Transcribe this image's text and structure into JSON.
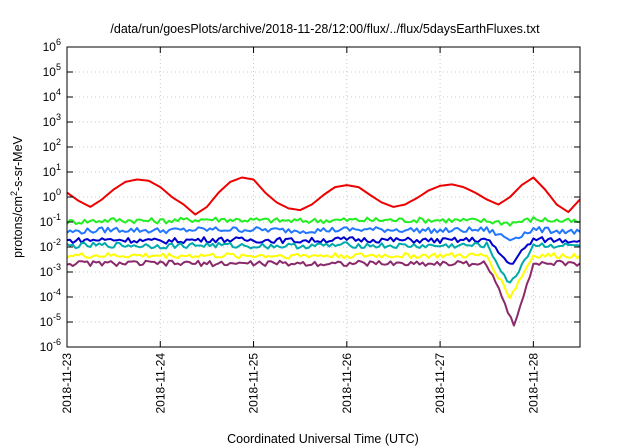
{
  "chart_data": {
    "type": "line",
    "title": "/data/run/goesPlots/archive/2018-11-28/12:00/flux/../flux/5daysEarthFluxes.txt",
    "xlabel": "Coordinated Universal Time (UTC)",
    "ylabel": {
      "base": "protons/cm",
      "sup": "2",
      "rest": "-s-sr-MeV"
    },
    "x_range": [
      "2018-11-23 00:00",
      "2018-11-28 12:00"
    ],
    "x_ticks": [
      "2018-11-23",
      "2018-11-24",
      "2018-11-25",
      "2018-11-26",
      "2018-11-27",
      "2018-11-28"
    ],
    "y_scale": "log",
    "ylim": [
      1e-06,
      1000000.0
    ],
    "y_ticks": [
      {
        "base": "10",
        "exp": "-6"
      },
      {
        "base": "10",
        "exp": "-5"
      },
      {
        "base": "10",
        "exp": "-4"
      },
      {
        "base": "10",
        "exp": "-3"
      },
      {
        "base": "10",
        "exp": "-2"
      },
      {
        "base": "10",
        "exp": "-1"
      },
      {
        "base": "10",
        "exp": "0"
      },
      {
        "base": "10",
        "exp": "1"
      },
      {
        "base": "10",
        "exp": "2"
      },
      {
        "base": "10",
        "exp": "3"
      },
      {
        "base": "10",
        "exp": "4"
      },
      {
        "base": "10",
        "exp": "5"
      },
      {
        "base": "10",
        "exp": "6"
      }
    ],
    "grid": true,
    "series": [
      {
        "color": "#ee0000",
        "x": [
          "2018-11-23 00:00",
          "2018-11-23 03:00",
          "2018-11-23 06:00",
          "2018-11-23 09:00",
          "2018-11-23 12:00",
          "2018-11-23 15:00",
          "2018-11-23 18:00",
          "2018-11-23 21:00",
          "2018-11-24 00:00",
          "2018-11-24 03:00",
          "2018-11-24 06:00",
          "2018-11-24 09:00",
          "2018-11-24 12:00",
          "2018-11-24 15:00",
          "2018-11-24 18:00",
          "2018-11-24 21:00",
          "2018-11-25 00:00",
          "2018-11-25 03:00",
          "2018-11-25 06:00",
          "2018-11-25 09:00",
          "2018-11-25 12:00",
          "2018-11-25 15:00",
          "2018-11-25 18:00",
          "2018-11-25 21:00",
          "2018-11-26 00:00",
          "2018-11-26 03:00",
          "2018-11-26 06:00",
          "2018-11-26 09:00",
          "2018-11-26 12:00",
          "2018-11-26 15:00",
          "2018-11-26 18:00",
          "2018-11-26 21:00",
          "2018-11-27 00:00",
          "2018-11-27 03:00",
          "2018-11-27 06:00",
          "2018-11-27 09:00",
          "2018-11-27 12:00",
          "2018-11-27 15:00",
          "2018-11-27 18:00",
          "2018-11-27 21:00",
          "2018-11-28 00:00",
          "2018-11-28 03:00",
          "2018-11-28 06:00",
          "2018-11-28 09:00",
          "2018-11-28 12:00"
        ],
        "y": [
          1.5,
          0.7,
          0.4,
          0.8,
          2.0,
          4.0,
          5.0,
          4.5,
          2.5,
          1.0,
          0.5,
          0.2,
          0.4,
          1.5,
          4.0,
          6.0,
          5.0,
          1.5,
          0.6,
          0.35,
          0.3,
          0.5,
          1.2,
          2.5,
          3.0,
          2.5,
          1.2,
          0.6,
          0.4,
          0.5,
          0.9,
          1.8,
          2.8,
          3.2,
          2.5,
          1.5,
          0.8,
          0.5,
          1.0,
          3.0,
          6.0,
          2.0,
          0.5,
          0.25,
          0.8
        ]
      },
      {
        "color": "#22ee22",
        "x": [
          "2018-11-23 00:00",
          "2018-11-23 12:00",
          "2018-11-24 00:00",
          "2018-11-24 12:00",
          "2018-11-25 00:00",
          "2018-11-25 12:00",
          "2018-11-26 00:00",
          "2018-11-26 12:00",
          "2018-11-27 00:00",
          "2018-11-27 12:00",
          "2018-11-27 18:00",
          "2018-11-28 00:00",
          "2018-11-28 12:00"
        ],
        "y": [
          0.1,
          0.12,
          0.11,
          0.13,
          0.12,
          0.11,
          0.12,
          0.12,
          0.12,
          0.11,
          0.09,
          0.13,
          0.1
        ]
      },
      {
        "color": "#2277ff",
        "x": [
          "2018-11-23 00:00",
          "2018-11-23 12:00",
          "2018-11-24 00:00",
          "2018-11-24 12:00",
          "2018-11-25 00:00",
          "2018-11-25 12:00",
          "2018-11-26 00:00",
          "2018-11-26 12:00",
          "2018-11-27 00:00",
          "2018-11-27 12:00",
          "2018-11-27 18:00",
          "2018-11-28 00:00",
          "2018-11-28 12:00"
        ],
        "y": [
          0.04,
          0.05,
          0.045,
          0.05,
          0.05,
          0.045,
          0.05,
          0.05,
          0.045,
          0.05,
          0.02,
          0.05,
          0.04
        ]
      },
      {
        "color": "#0000cc",
        "x": [
          "2018-11-23 00:00",
          "2018-11-23 12:00",
          "2018-11-24 00:00",
          "2018-11-24 12:00",
          "2018-11-25 00:00",
          "2018-11-25 12:00",
          "2018-11-26 00:00",
          "2018-11-26 12:00",
          "2018-11-27 00:00",
          "2018-11-27 12:00",
          "2018-11-27 18:00",
          "2018-11-28 00:00",
          "2018-11-28 12:00"
        ],
        "y": [
          0.018,
          0.02,
          0.017,
          0.02,
          0.019,
          0.018,
          0.02,
          0.019,
          0.018,
          0.02,
          0.002,
          0.02,
          0.018
        ]
      },
      {
        "color": "#00aaaa",
        "x": [
          "2018-11-23 00:00",
          "2018-11-23 12:00",
          "2018-11-24 00:00",
          "2018-11-24 12:00",
          "2018-11-25 00:00",
          "2018-11-25 12:00",
          "2018-11-26 00:00",
          "2018-11-26 12:00",
          "2018-11-27 00:00",
          "2018-11-27 12:00",
          "2018-11-27 18:00",
          "2018-11-28 00:00",
          "2018-11-28 12:00"
        ],
        "y": [
          0.011,
          0.012,
          0.011,
          0.012,
          0.011,
          0.011,
          0.012,
          0.011,
          0.011,
          0.012,
          0.0003,
          0.012,
          0.011
        ]
      },
      {
        "color": "#ffff00",
        "x": [
          "2018-11-23 00:00",
          "2018-11-23 12:00",
          "2018-11-24 00:00",
          "2018-11-24 12:00",
          "2018-11-25 00:00",
          "2018-11-25 12:00",
          "2018-11-26 00:00",
          "2018-11-26 12:00",
          "2018-11-27 00:00",
          "2018-11-27 12:00",
          "2018-11-27 18:00",
          "2018-11-28 00:00",
          "2018-11-28 12:00"
        ],
        "y": [
          0.0045,
          0.0045,
          0.0045,
          0.0045,
          0.0045,
          0.0045,
          0.0045,
          0.0045,
          0.0045,
          0.0045,
          0.0001,
          0.0045,
          0.0045
        ]
      },
      {
        "color": "#8b2a6b",
        "x": [
          "2018-11-23 00:00",
          "2018-11-23 12:00",
          "2018-11-24 00:00",
          "2018-11-24 12:00",
          "2018-11-25 00:00",
          "2018-11-25 12:00",
          "2018-11-26 00:00",
          "2018-11-26 12:00",
          "2018-11-27 00:00",
          "2018-11-27 12:00",
          "2018-11-27 19:00",
          "2018-11-28 00:00",
          "2018-11-28 12:00"
        ],
        "y": [
          0.0022,
          0.0022,
          0.0022,
          0.0022,
          0.0022,
          0.0022,
          0.0022,
          0.0022,
          0.0022,
          0.0022,
          8e-06,
          0.0022,
          0.0022
        ]
      }
    ]
  }
}
